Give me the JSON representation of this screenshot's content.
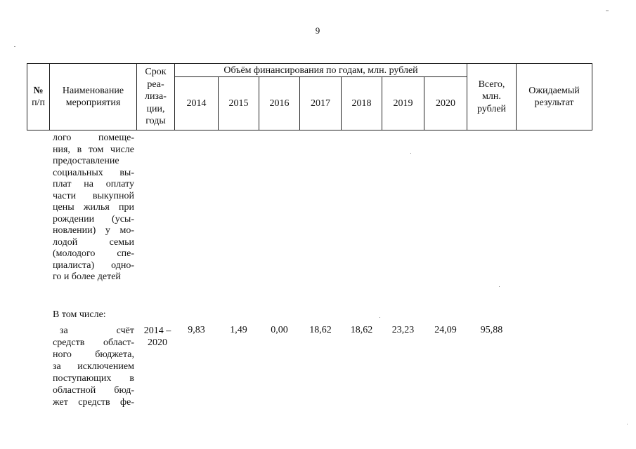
{
  "page_number": "9",
  "header": {
    "col_no": [
      "№",
      "п/п"
    ],
    "col_name": [
      "Наименование",
      "мероприятия"
    ],
    "col_term": [
      "Срок",
      "реа-",
      "лиза-",
      "ции,",
      "годы"
    ],
    "funding_title": "Объём финансирования по годам, млн. рублей",
    "years": [
      "2014",
      "2015",
      "2016",
      "2017",
      "2018",
      "2019",
      "2020"
    ],
    "col_total": [
      "Всего,",
      "млн.",
      "рублей"
    ],
    "col_result": [
      "Ожидаемый",
      "результат"
    ]
  },
  "body": {
    "continued_text": [
      "лого помеще-",
      "ния, в том числе",
      "предоставление",
      "социальных вы-",
      "плат на оплату",
      "части выкупной",
      "цены жилья при",
      "рождении (усы-",
      "новлении) у мо-",
      "лодой семьи",
      "(молодого спе-",
      "циалиста) одно-",
      "го и более детей"
    ],
    "including_label": "В том числе:",
    "row": {
      "name": [
        "за счёт",
        "средств област-",
        "ного бюджета,",
        "за исключением",
        "поступающих в",
        "областной бюд-",
        "жет средств фе-"
      ],
      "term": [
        "2014 –",
        "2020"
      ],
      "values": [
        "9,83",
        "1,49",
        "0,00",
        "18,62",
        "18,62",
        "23,23",
        "24,09"
      ],
      "total": "95,88"
    }
  }
}
